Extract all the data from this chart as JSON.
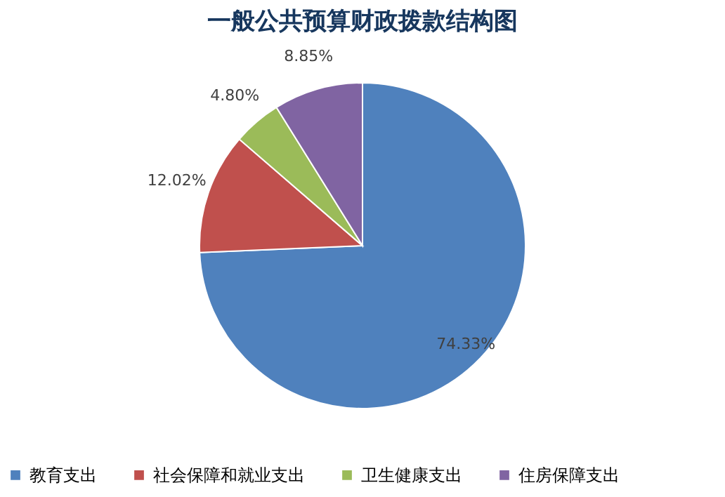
{
  "chart_data": {
    "type": "pie",
    "title": "一般公共预算财政拨款结构图",
    "categories": [
      "教育支出",
      "社会保障和就业支出",
      "卫生健康支出",
      "住房保障支出"
    ],
    "values": [
      74.33,
      12.02,
      4.8,
      8.85
    ],
    "value_labels": [
      "74.33%",
      "12.02%",
      "4.80%",
      "8.85%"
    ],
    "colors": [
      "#4f81bd",
      "#c0504d",
      "#9bbb59",
      "#8064a2"
    ],
    "legend": "bottom"
  }
}
